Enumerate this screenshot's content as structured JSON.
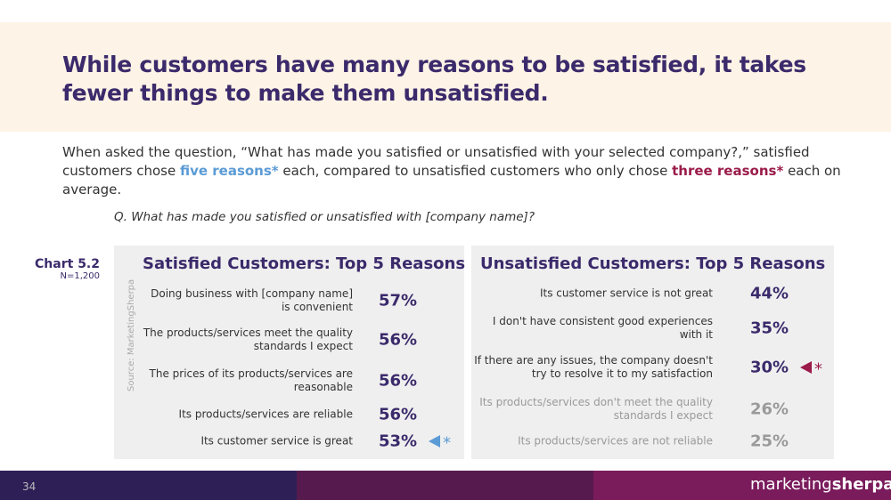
{
  "header": {
    "title": "While customers have many reasons to be satisfied, it takes fewer things to make them unsatisfied."
  },
  "intro": {
    "part1": "When asked the question, “What has made you satisfied or unsatisfied with your selected company?,” satisfied customers chose ",
    "highlight1": "five reasons*",
    "part2": " each, compared to unsatisfied customers who only chose ",
    "highlight2": "three reasons*",
    "part3": " each on average."
  },
  "question": "Q. What has made you satisfied or unsatisfied with [company name]?",
  "chart_label": {
    "title": "Chart 5.2",
    "sample": "N=1,200"
  },
  "source": "Source: MarketingSherpa",
  "panels": [
    {
      "title": "Satisfied Customers: Top 5 Reasons",
      "rows": [
        {
          "label": "Doing business with [company name] is convenient",
          "value": "57%"
        },
        {
          "label": "The products/services meet the quality standards I expect",
          "value": "56%"
        },
        {
          "label": "The prices of its products/services are reasonable",
          "value": "56%"
        },
        {
          "label": "Its products/services are reliable",
          "value": "56%"
        },
        {
          "label": "Its customer service is great",
          "value": "53%",
          "marker": "*"
        }
      ]
    },
    {
      "title": "Unsatisfied Customers: Top 5 Reasons",
      "rows": [
        {
          "label": "Its customer service is not great",
          "value": "44%"
        },
        {
          "label": "I don't have consistent good experiences with it",
          "value": "35%"
        },
        {
          "label": "If there are any issues, the company doesn't try to resolve it to my satisfaction",
          "value": "30%",
          "marker": "*"
        },
        {
          "label": "Its products/services don't meet the quality standards I expect",
          "value": "26%"
        },
        {
          "label": "Its products/services are not reliable",
          "value": "25%"
        }
      ]
    }
  ],
  "footer": {
    "page": "34",
    "brand_a": "marketing",
    "brand_b": "sherpa"
  }
}
